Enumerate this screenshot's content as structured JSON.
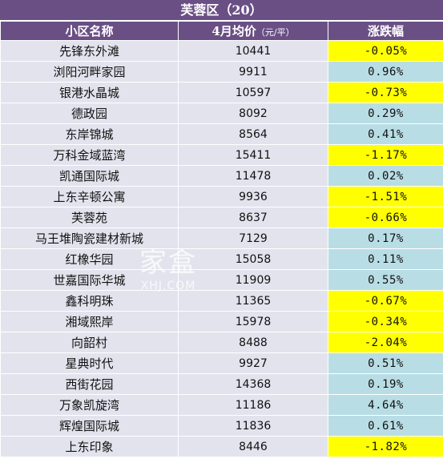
{
  "title": "芙蓉区（20）",
  "headers": {
    "name": "小区名称",
    "price": "4月均价",
    "price_unit": "（元/平）",
    "change": "涨跌幅"
  },
  "colors": {
    "header_bg": "#6a4f85",
    "cell_bg": "#e3e3ee",
    "neg_bg": "#ffff00",
    "pos_bg": "#b9dde5"
  },
  "watermark": {
    "main": "家盒",
    "sub": "XHJ.COM"
  },
  "rows": [
    {
      "name": "先锋东外滩",
      "price": "10441",
      "change": "-0.05%"
    },
    {
      "name": "浏阳河畔家园",
      "price": "9911",
      "change": "0.96%"
    },
    {
      "name": "银港水晶城",
      "price": "10597",
      "change": "-0.73%"
    },
    {
      "name": "德政园",
      "price": "8092",
      "change": "0.29%"
    },
    {
      "name": "东岸锦城",
      "price": "8564",
      "change": "0.41%"
    },
    {
      "name": "万科金域蓝湾",
      "price": "15411",
      "change": "-1.17%"
    },
    {
      "name": "凯通国际城",
      "price": "11478",
      "change": "0.02%"
    },
    {
      "name": "上东辛顿公寓",
      "price": "9936",
      "change": "-1.51%"
    },
    {
      "name": "芙蓉苑",
      "price": "8637",
      "change": "-0.66%"
    },
    {
      "name": "马王堆陶瓷建材新城",
      "price": "7129",
      "change": "0.17%"
    },
    {
      "name": "红橡华园",
      "price": "15058",
      "change": "0.11%"
    },
    {
      "name": "世嘉国际华城",
      "price": "11909",
      "change": "0.55%"
    },
    {
      "name": "鑫科明珠",
      "price": "11365",
      "change": "-0.67%"
    },
    {
      "name": "湘域熙岸",
      "price": "15978",
      "change": "-0.34%"
    },
    {
      "name": "向韶村",
      "price": "8488",
      "change": "-2.04%"
    },
    {
      "name": "星典时代",
      "price": "9927",
      "change": "0.51%"
    },
    {
      "name": "西街花园",
      "price": "14368",
      "change": "0.19%"
    },
    {
      "name": "万象凯旋湾",
      "price": "11186",
      "change": "4.64%"
    },
    {
      "name": "辉煌国际城",
      "price": "11836",
      "change": "0.61%"
    },
    {
      "name": "上东印象",
      "price": "8446",
      "change": "-1.82%"
    }
  ]
}
